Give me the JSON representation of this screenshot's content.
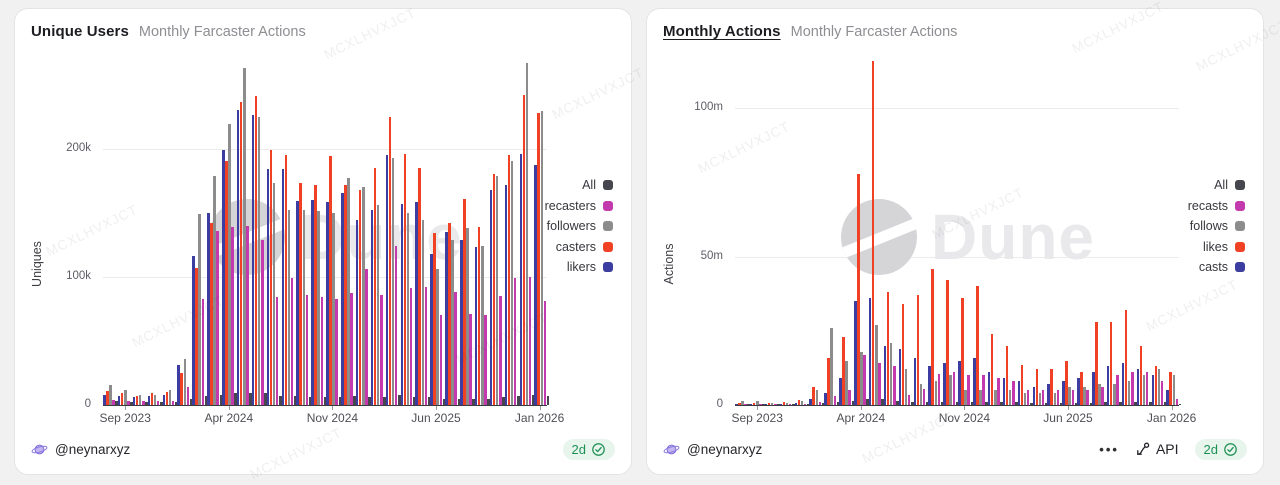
{
  "page": {
    "watermark_text": "MCXLHVXJCT",
    "dune_wordmark": "Dune"
  },
  "cards": [
    {
      "title": "Unique Users",
      "subtitle": "Monthly Farcaster Actions",
      "footer": {
        "handle": "@neynarxyz",
        "refresh_age": "2d"
      }
    },
    {
      "title": "Monthly Actions",
      "subtitle": "Monthly Farcaster Actions",
      "footer": {
        "handle": "@neynarxyz",
        "refresh_age": "2d"
      },
      "actions": {
        "menu": "•••",
        "api_label": "API"
      }
    }
  ],
  "chart_data": [
    {
      "type": "bar",
      "title": "Unique Users — Monthly Farcaster Actions",
      "ylabel": "Uniques",
      "unit": "thousands",
      "ylim": [
        0,
        273
      ],
      "grid": true,
      "legend_position": "right",
      "x": [
        "Aug 2023",
        "Sep 2023",
        "Oct 2023",
        "Nov 2023",
        "Dec 2023",
        "Jan 2024",
        "Feb 2024",
        "Mar 2024",
        "Apr 2024",
        "May 2024",
        "Jun 2024",
        "Jul 2024",
        "Aug 2024",
        "Sep 2024",
        "Oct 2024",
        "Nov 2024",
        "Dec 2024",
        "Jan 2025",
        "Feb 2025",
        "Mar 2025",
        "Apr 2025",
        "May 2025",
        "Jun 2025",
        "Jul 2025",
        "Aug 2025",
        "Sep 2025",
        "Oct 2025",
        "Nov 2025",
        "Dec 2025",
        "Jan 2026"
      ],
      "x_tick_indices": [
        1,
        8,
        15,
        22,
        29
      ],
      "x_tick_labels": [
        "Sep 2023",
        "Apr 2024",
        "Nov 2024",
        "Jun 2025",
        "Jan 2026"
      ],
      "y_ticks": [
        {
          "value": 0,
          "label": "0"
        },
        {
          "value": 100,
          "label": "100k"
        },
        {
          "value": 200,
          "label": "200k"
        }
      ],
      "series": [
        {
          "name": "likers",
          "color": "#3c3da0",
          "values": [
            8,
            7,
            6,
            7,
            8,
            31,
            116,
            150,
            199,
            230,
            226,
            184,
            184,
            159,
            160,
            158,
            165,
            144,
            152,
            195,
            157,
            158,
            118,
            135,
            129,
            123,
            168,
            172,
            196,
            187
          ]
        },
        {
          "name": "casters",
          "color": "#f04124",
          "values": [
            11,
            9,
            7,
            9,
            10,
            25,
            107,
            142,
            190,
            236,
            241,
            199,
            195,
            173,
            172,
            194,
            172,
            168,
            185,
            225,
            196,
            185,
            134,
            142,
            161,
            139,
            180,
            195,
            242,
            228
          ]
        },
        {
          "name": "followers",
          "color": "#8c8c8c",
          "values": [
            16,
            12,
            8,
            8,
            12,
            36,
            149,
            179,
            219,
            263,
            225,
            173,
            152,
            152,
            151,
            150,
            177,
            170,
            156,
            193,
            150,
            144,
            106,
            129,
            138,
            124,
            179,
            190,
            267,
            229
          ]
        },
        {
          "name": "recasters",
          "color": "#c23aae",
          "values": [
            4,
            3,
            3,
            3,
            3,
            14,
            83,
            136,
            139,
            140,
            129,
            84,
            99,
            86,
            84,
            83,
            87,
            106,
            86,
            124,
            91,
            92,
            70,
            88,
            71,
            70,
            85,
            99,
            100,
            81
          ]
        },
        {
          "name": "All",
          "color": "#46464e",
          "values": [
            3,
            2,
            2,
            2,
            2,
            5,
            7,
            8,
            9,
            9,
            9,
            7,
            7,
            6,
            6,
            6,
            7,
            6,
            6,
            8,
            6,
            6,
            5,
            5,
            5,
            5,
            6,
            7,
            8,
            7
          ]
        }
      ],
      "legend": [
        {
          "label": "All",
          "color": "#46464e"
        },
        {
          "label": "recasters",
          "color": "#c23aae"
        },
        {
          "label": "followers",
          "color": "#8c8c8c"
        },
        {
          "label": "casters",
          "color": "#f04124"
        },
        {
          "label": "likers",
          "color": "#3c3da0"
        }
      ]
    },
    {
      "type": "bar",
      "title": "Monthly Actions — Monthly Farcaster Actions",
      "ylabel": "Actions",
      "unit": "millions",
      "ylim": [
        0,
        118
      ],
      "grid": true,
      "legend_position": "right",
      "x": [
        "Aug 2023",
        "Sep 2023",
        "Oct 2023",
        "Nov 2023",
        "Dec 2023",
        "Jan 2024",
        "Feb 2024",
        "Mar 2024",
        "Apr 2024",
        "May 2024",
        "Jun 2024",
        "Jul 2024",
        "Aug 2024",
        "Sep 2024",
        "Oct 2024",
        "Nov 2024",
        "Dec 2024",
        "Jan 2025",
        "Feb 2025",
        "Mar 2025",
        "Apr 2025",
        "May 2025",
        "Jun 2025",
        "Jul 2025",
        "Aug 2025",
        "Sep 2025",
        "Oct 2025",
        "Nov 2025",
        "Dec 2025",
        "Jan 2026"
      ],
      "x_tick_indices": [
        1,
        8,
        15,
        22,
        29
      ],
      "x_tick_labels": [
        "Sep 2023",
        "Apr 2024",
        "Nov 2024",
        "Jun 2025",
        "Jan 2026"
      ],
      "y_ticks": [
        {
          "value": 0,
          "label": "0"
        },
        {
          "value": 50,
          "label": "50m"
        },
        {
          "value": 100,
          "label": "100m"
        }
      ],
      "series": [
        {
          "name": "casts",
          "color": "#3c3da0",
          "values": [
            0.3,
            0.4,
            0.3,
            0.4,
            0.6,
            2,
            4,
            9,
            35,
            36,
            20,
            19,
            16,
            13,
            14,
            15,
            16,
            11,
            9,
            8,
            6,
            7,
            8,
            9,
            11,
            13,
            14,
            12,
            10,
            5
          ]
        },
        {
          "name": "likes",
          "color": "#f04124",
          "values": [
            0.6,
            0.7,
            0.6,
            1,
            1.8,
            6,
            16,
            23,
            78,
            116,
            38,
            34,
            37,
            46,
            42,
            36,
            40,
            24,
            20,
            13.5,
            12,
            12,
            15,
            11,
            28,
            28,
            32,
            20,
            13,
            11
          ]
        },
        {
          "name": "follows",
          "color": "#8c8c8c",
          "values": [
            1.5,
            1.2,
            0.8,
            0.8,
            1.5,
            5,
            26,
            15,
            18,
            27,
            21,
            12,
            7,
            8,
            10,
            5,
            5,
            5,
            5,
            4,
            4,
            4,
            6,
            6,
            7,
            7,
            8,
            10,
            12,
            10
          ]
        },
        {
          "name": "recasts",
          "color": "#c23aae",
          "values": [
            0.2,
            0.2,
            0.2,
            0.3,
            0.4,
            1,
            3,
            5,
            17,
            14,
            13,
            3.5,
            5.5,
            10.5,
            11,
            10,
            10,
            9,
            8,
            5,
            5,
            5,
            5,
            5,
            6,
            10,
            11,
            11,
            8,
            2
          ]
        },
        {
          "name": "All",
          "color": "#46464e",
          "values": [
            0.2,
            0.2,
            0.2,
            0.2,
            0.3,
            0.6,
            1,
            1.5,
            2,
            2,
            1.5,
            1,
            1,
            1,
            1,
            1,
            1,
            1,
            1,
            0.8,
            0.8,
            0.8,
            0.8,
            0.8,
            1,
            1,
            1,
            1,
            1,
            0.5
          ]
        }
      ],
      "legend": [
        {
          "label": "All",
          "color": "#46464e"
        },
        {
          "label": "recasts",
          "color": "#c23aae"
        },
        {
          "label": "follows",
          "color": "#8c8c8c"
        },
        {
          "label": "likes",
          "color": "#f04124"
        },
        {
          "label": "casts",
          "color": "#3c3da0"
        }
      ]
    }
  ]
}
